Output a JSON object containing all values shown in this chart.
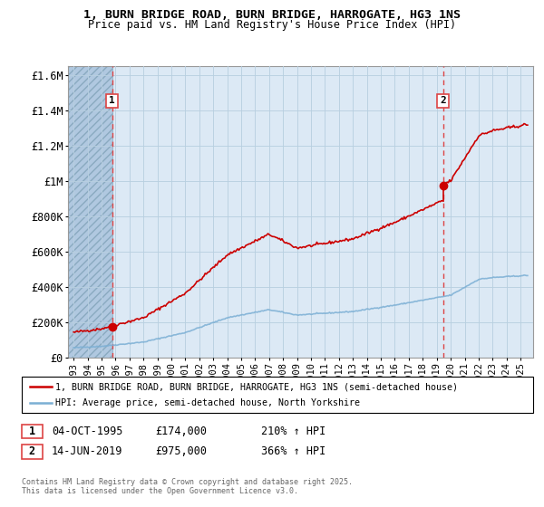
{
  "title_line1": "1, BURN BRIDGE ROAD, BURN BRIDGE, HARROGATE, HG3 1NS",
  "title_line2": "Price paid vs. HM Land Registry's House Price Index (HPI)",
  "ylim": [
    0,
    1650000
  ],
  "yticks": [
    0,
    200000,
    400000,
    600000,
    800000,
    1000000,
    1200000,
    1400000,
    1600000
  ],
  "ytick_labels": [
    "£0",
    "£200K",
    "£400K",
    "£600K",
    "£800K",
    "£1M",
    "£1.2M",
    "£1.4M",
    "£1.6M"
  ],
  "xmin": 1992.6,
  "xmax": 2025.9,
  "sale1_date": 1995.75,
  "sale1_price": 174000,
  "sale2_date": 2019.45,
  "sale2_price": 975000,
  "legend_line1": "1, BURN BRIDGE ROAD, BURN BRIDGE, HARROGATE, HG3 1NS (semi-detached house)",
  "legend_line2": "HPI: Average price, semi-detached house, North Yorkshire",
  "ann1_date": "04-OCT-1995",
  "ann1_price": "£174,000",
  "ann1_hpi": "210% ↑ HPI",
  "ann2_date": "14-JUN-2019",
  "ann2_price": "£975,000",
  "ann2_hpi": "366% ↑ HPI",
  "footer": "Contains HM Land Registry data © Crown copyright and database right 2025.\nThis data is licensed under the Open Government Licence v3.0.",
  "hpi_color": "#7bafd4",
  "price_color": "#cc0000",
  "dashed_color": "#dd4444",
  "chart_bg": "#dce9f5",
  "hatch_color": "#b0c8e0",
  "grid_color": "#b8cfe0"
}
